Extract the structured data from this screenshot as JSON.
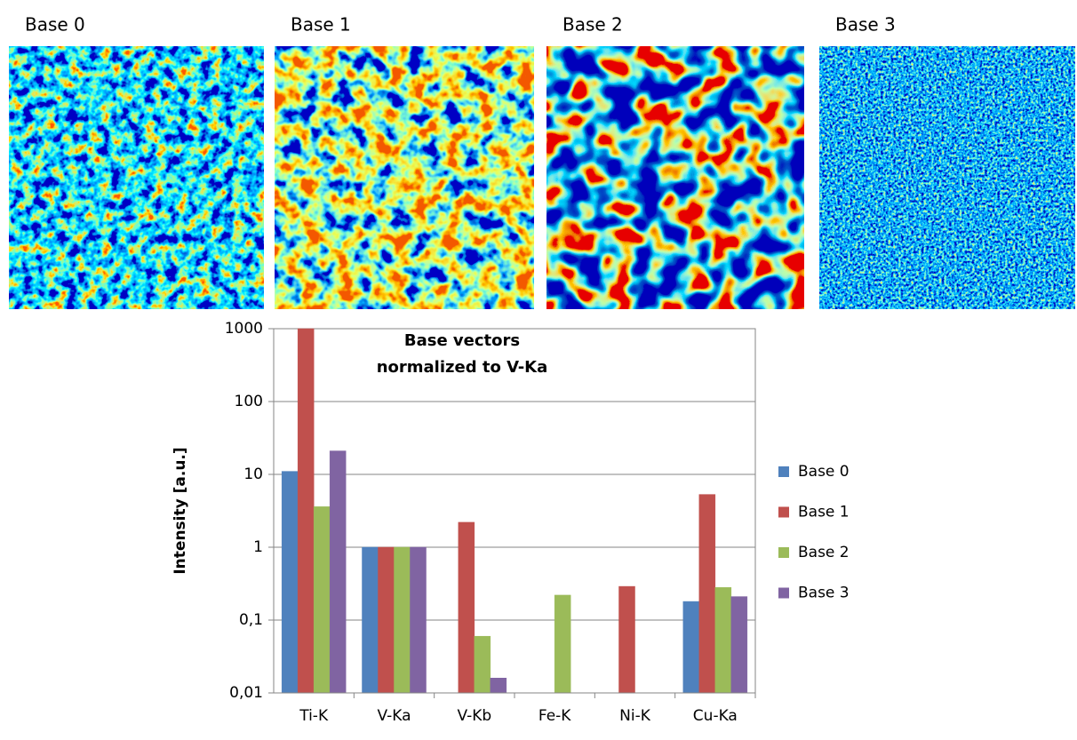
{
  "panels": [
    {
      "label": "Base 0"
    },
    {
      "label": "Base 1"
    },
    {
      "label": "Base 2"
    },
    {
      "label": "Base 3"
    }
  ],
  "chart_data": {
    "type": "bar",
    "title": "Base vectors",
    "subtitle": "normalized to V-Ka",
    "y_label": "Intensity [a.u.]",
    "log_scale": true,
    "grid": true,
    "legend": "right",
    "categories": [
      "Ti-K",
      "V-Ka",
      "V-Kb",
      "Fe-K",
      "Ni-K",
      "Cu-Ka"
    ],
    "series": [
      {
        "name": "Base 0",
        "color": "#4f81bd",
        "values": [
          11,
          1,
          0.01,
          0.01,
          0.01,
          0.18
        ]
      },
      {
        "name": "Base 1",
        "color": "#c0504d",
        "values": [
          1000,
          1,
          2.2,
          0.01,
          0.29,
          5.3
        ]
      },
      {
        "name": "Base 2",
        "color": "#9bbb59",
        "values": [
          3.6,
          1,
          0.06,
          0.22,
          0.01,
          0.28
        ]
      },
      {
        "name": "Base 3",
        "color": "#8064a2",
        "values": [
          21,
          1,
          0.016,
          0.01,
          0.01,
          0.21
        ]
      }
    ],
    "ylim": [
      0.01,
      1000
    ],
    "yticks": [
      {
        "value": 0.01,
        "label": "0,01"
      },
      {
        "value": 0.1,
        "label": "0,1"
      },
      1,
      10,
      100,
      1000
    ]
  }
}
